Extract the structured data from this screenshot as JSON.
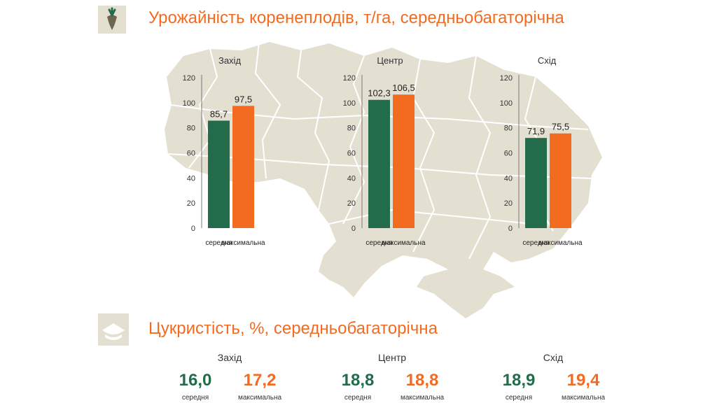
{
  "colors": {
    "average": "#236c4b",
    "maximum": "#f26b21",
    "map": "#e3e0d2",
    "map_border": "#ffffff"
  },
  "header": {
    "icon": "sugar-beet-icon",
    "title": "Урожайність коренеплодів, т/га, середньобагаторічна"
  },
  "chart_data": [
    {
      "type": "bar",
      "title": "Захід",
      "categories": [
        "середня",
        "максимальна"
      ],
      "values": [
        85.7,
        97.5
      ],
      "labels": [
        "85,7",
        "97,5"
      ],
      "ylim": [
        0,
        120
      ],
      "yticks": [
        0,
        20,
        40,
        60,
        80,
        100,
        120
      ],
      "grid": false
    },
    {
      "type": "bar",
      "title": "Центр",
      "categories": [
        "середня",
        "максимальна"
      ],
      "values": [
        102.3,
        106.5
      ],
      "labels": [
        "102,3",
        "106,5"
      ],
      "ylim": [
        0,
        120
      ],
      "yticks": [
        0,
        20,
        40,
        60,
        80,
        100,
        120
      ],
      "grid": false
    },
    {
      "type": "bar",
      "title": "Схід",
      "categories": [
        "середня",
        "максимальна"
      ],
      "values": [
        71.9,
        75.5
      ],
      "labels": [
        "71,9",
        "75,5"
      ],
      "ylim": [
        0,
        120
      ],
      "yticks": [
        0,
        20,
        40,
        60,
        80,
        100,
        120
      ],
      "grid": false
    }
  ],
  "sugar": {
    "icon": "sugar-pile-icon",
    "title": "Цукристість, %, середньобагаторічна",
    "regions": [
      {
        "name": "Захід",
        "avg": "16,0",
        "max": "17,2",
        "avg_label": "середня",
        "max_label": "максимальна"
      },
      {
        "name": "Центр",
        "avg": "18,8",
        "max": "18,8",
        "avg_label": "середня",
        "max_label": "максимальна"
      },
      {
        "name": "Схід",
        "avg": "18,9",
        "max": "19,4",
        "avg_label": "середня",
        "max_label": "максимальна"
      }
    ]
  }
}
